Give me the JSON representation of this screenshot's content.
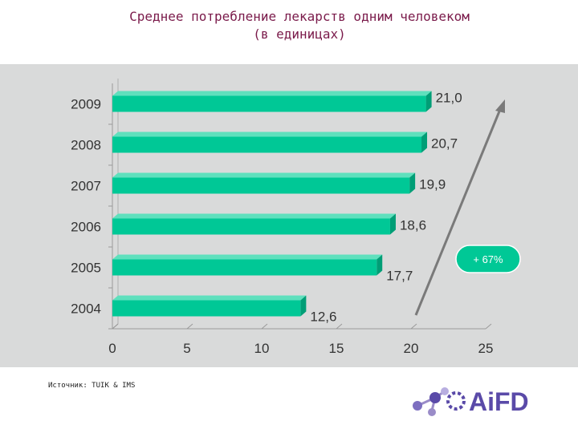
{
  "title_line1": "Среднее потребление лекарств одним человеком",
  "title_line2": "(в единицах)",
  "source": "Источник: TUIK & IMS",
  "annotation": "+ 67%",
  "logo_text": "AiFD",
  "colors": {
    "bar": "#00c896",
    "title": "#7a1a4a",
    "panel": "#d9dada",
    "logo": "#5a4aa8"
  },
  "chart_data": {
    "type": "bar",
    "orientation": "horizontal",
    "categories": [
      "2004",
      "2005",
      "2006",
      "2007",
      "2008",
      "2009"
    ],
    "values": [
      12.6,
      17.7,
      18.6,
      19.9,
      20.7,
      21.0
    ],
    "value_labels": [
      "12,6",
      "17,7",
      "18,6",
      "19,9",
      "20,7",
      "21,0"
    ],
    "xlim": [
      0,
      25
    ],
    "xticks": [
      "0",
      "5",
      "10",
      "15",
      "20",
      "25"
    ],
    "grid": false
  }
}
